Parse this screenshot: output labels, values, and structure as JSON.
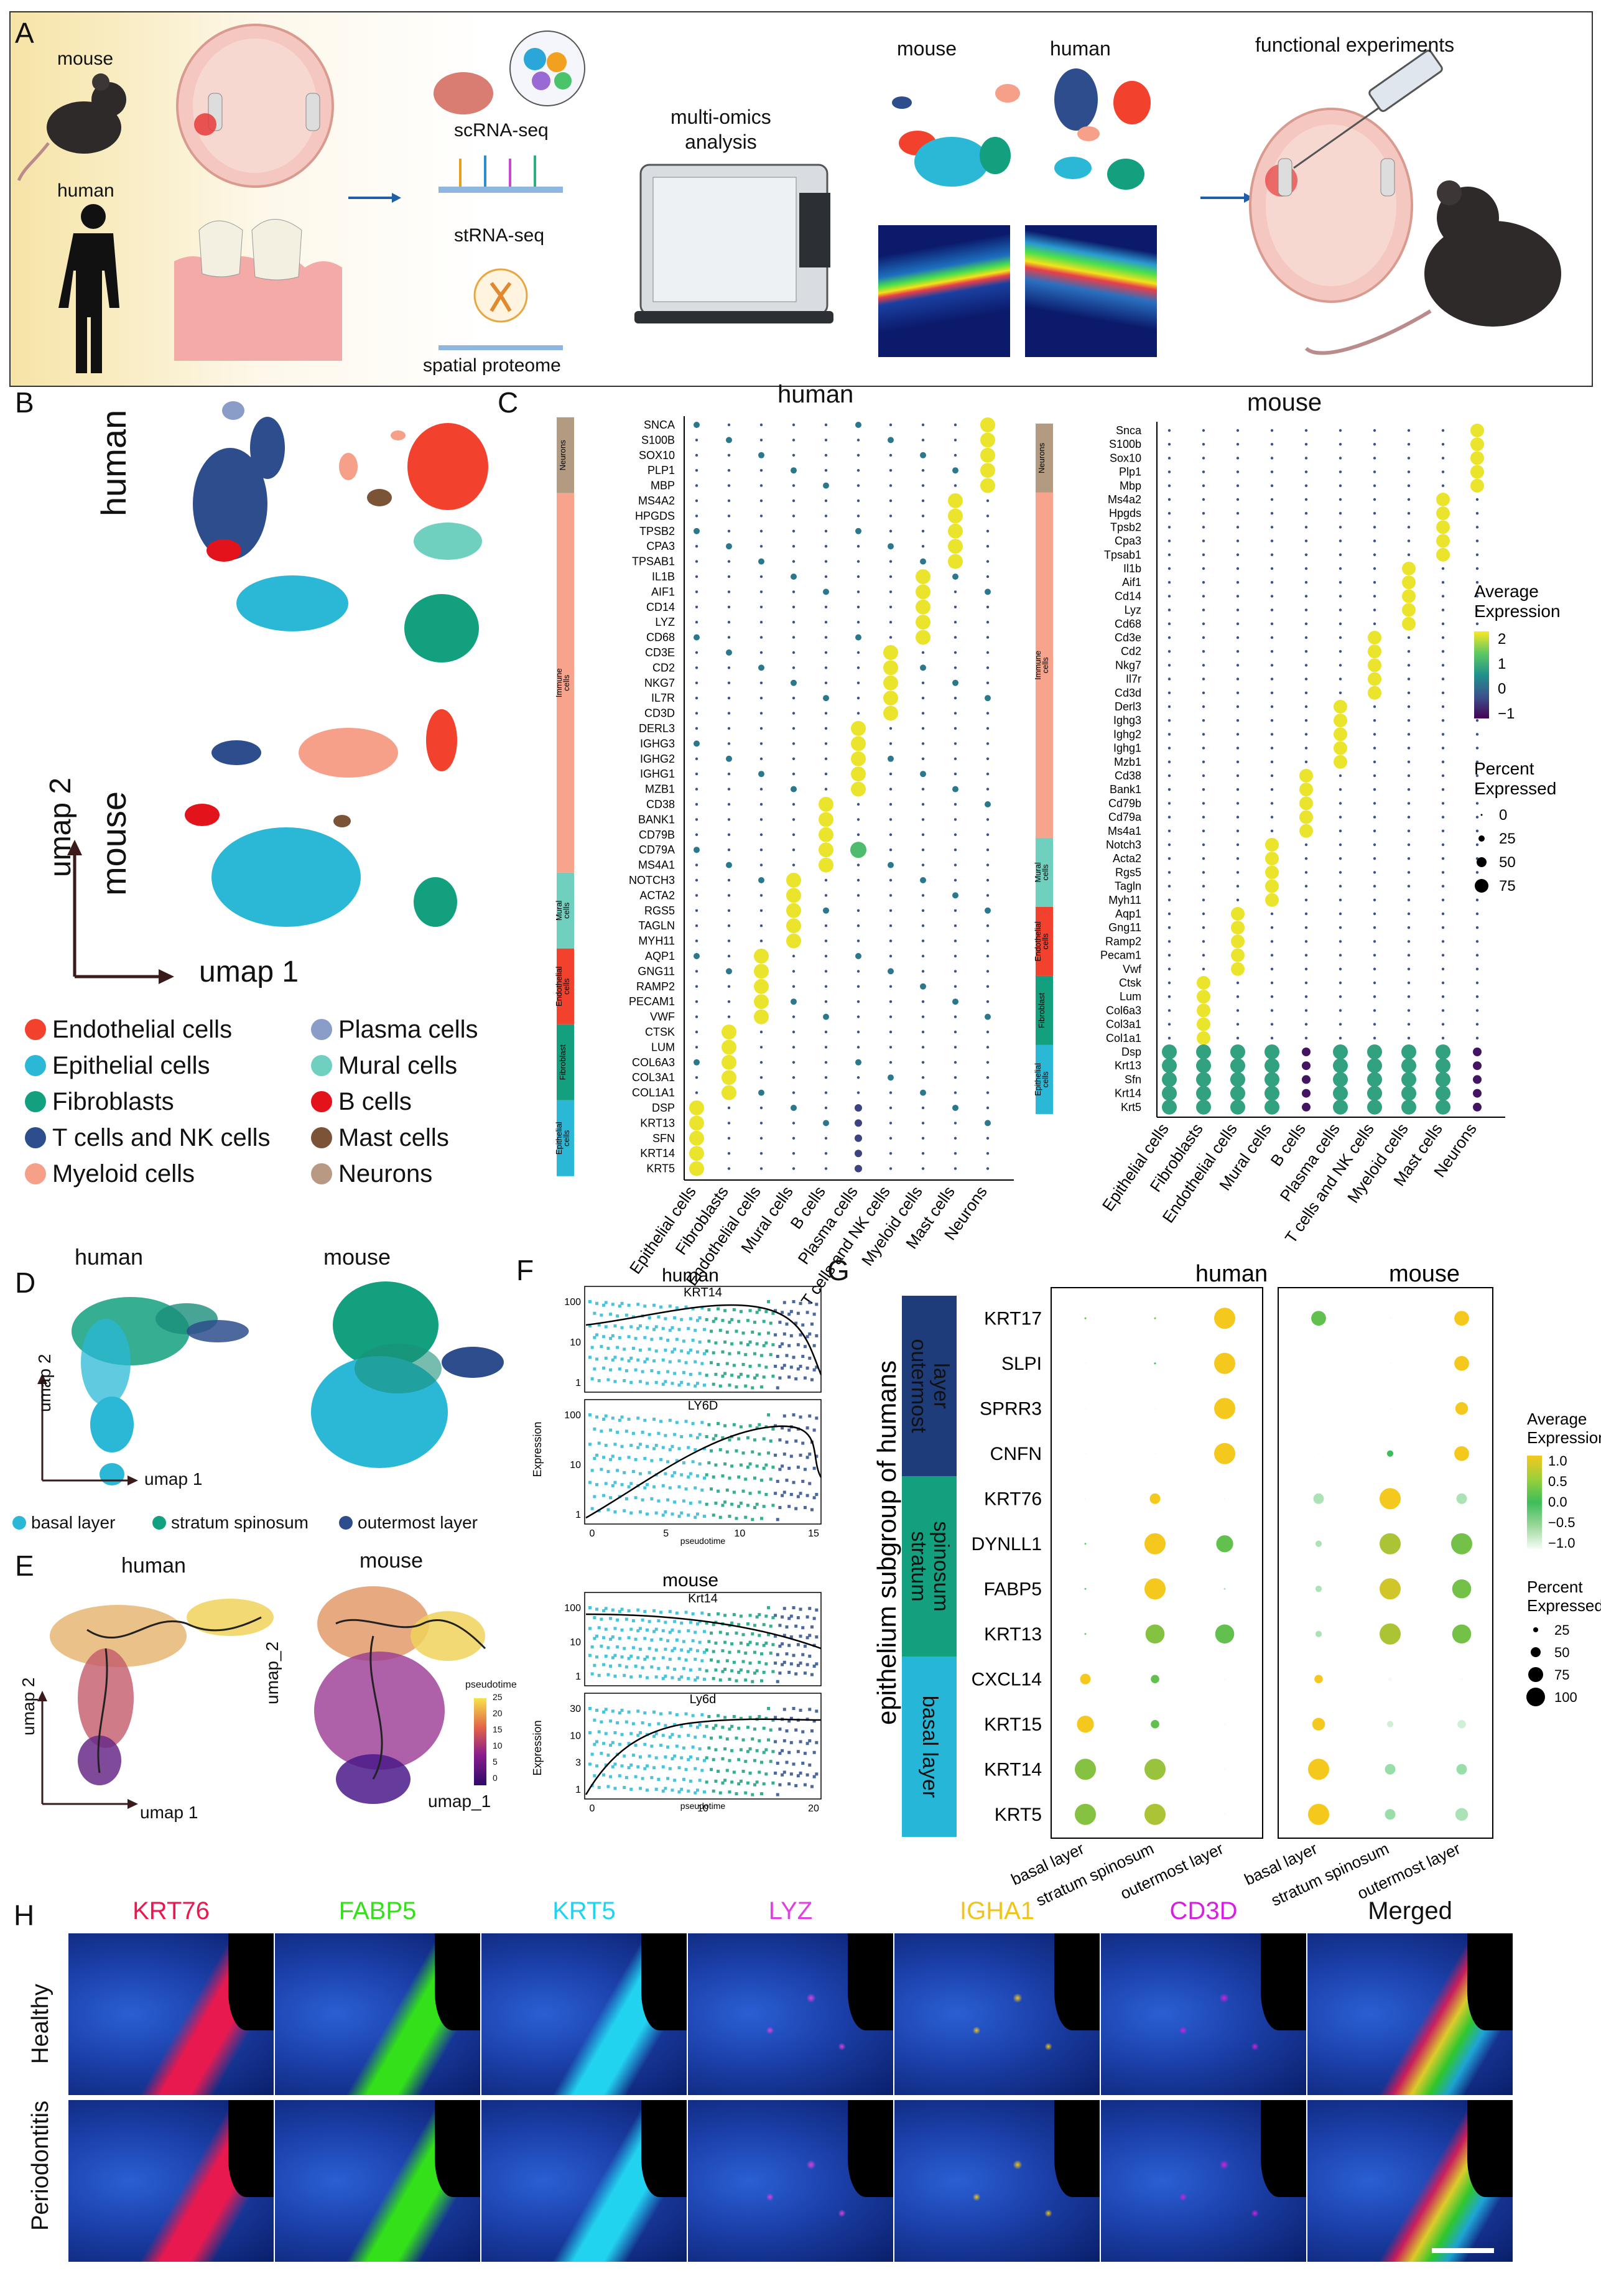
{
  "panels": {
    "a": "A",
    "b": "B",
    "c": "C",
    "d": "D",
    "e": "E",
    "f": "F",
    "g": "G",
    "h": "H"
  },
  "workflow": {
    "mouse": "mouse",
    "human": "human",
    "scrna": "scRNA-seq",
    "strna": "stRNA-seq",
    "spatial": "spatial proteome",
    "multiomics": "multi-omics\nanalysis",
    "mouse2": "mouse",
    "human2": "human",
    "functional": "functional experiments"
  },
  "umap": {
    "human": "human",
    "mouse": "mouse",
    "umap1": "umap 1",
    "umap2": "umap 2",
    "legend": [
      {
        "label": "Endothelial cells",
        "color": "#f2422d"
      },
      {
        "label": "Plasma cells",
        "color": "#8a9cc8"
      },
      {
        "label": "Epithelial cells",
        "color": "#2ab8d6"
      },
      {
        "label": "Mural cells",
        "color": "#6fd0c0"
      },
      {
        "label": "Fibroblasts",
        "color": "#13a07f"
      },
      {
        "label": "B cells",
        "color": "#e3131b"
      },
      {
        "label": "T cells and NK cells",
        "color": "#2e4d8c"
      },
      {
        "label": "Mast cells",
        "color": "#7b5437"
      },
      {
        "label": "Myeloid cells",
        "color": "#f6a08a"
      },
      {
        "label": "Neurons",
        "color": "#b89a84"
      }
    ]
  },
  "dotplot": {
    "human_title": "human",
    "mouse_title": "mouse",
    "human_genes": [
      "SNCA",
      "S100B",
      "SOX10",
      "PLP1",
      "MBP",
      "MS4A2",
      "HPGDS",
      "TPSB2",
      "CPA3",
      "TPSAB1",
      "IL1B",
      "AIF1",
      "CD14",
      "LYZ",
      "CD68",
      "CD3E",
      "CD2",
      "NKG7",
      "IL7R",
      "CD3D",
      "DERL3",
      "IGHG3",
      "IGHG2",
      "IGHG1",
      "MZB1",
      "CD38",
      "BANK1",
      "CD79B",
      "CD79A",
      "MS4A1",
      "NOTCH3",
      "ACTA2",
      "RGS5",
      "TAGLN",
      "MYH11",
      "AQP1",
      "GNG11",
      "RAMP2",
      "PECAM1",
      "VWF",
      "CTSK",
      "LUM",
      "COL6A3",
      "COL3A1",
      "COL1A1",
      "DSP",
      "KRT13",
      "SFN",
      "KRT14",
      "KRT5"
    ],
    "mouse_genes": [
      "Snca",
      "S100b",
      "Sox10",
      "Plp1",
      "Mbp",
      "Ms4a2",
      "Hpgds",
      "Tpsb2",
      "Cpa3",
      "Tpsab1",
      "Il1b",
      "Aif1",
      "Cd14",
      "Lyz",
      "Cd68",
      "Cd3e",
      "Cd2",
      "Nkg7",
      "Il7r",
      "Cd3d",
      "Derl3",
      "Ighg3",
      "Ighg2",
      "Ighg1",
      "Mzb1",
      "Cd38",
      "Bank1",
      "Cd79b",
      "Cd79a",
      "Ms4a1",
      "Notch3",
      "Acta2",
      "Rgs5",
      "Tagln",
      "Myh11",
      "Aqp1",
      "Gng11",
      "Ramp2",
      "Pecam1",
      "Vwf",
      "Ctsk",
      "Lum",
      "Col6a3",
      "Col3a1",
      "Col1a1",
      "Dsp",
      "Krt13",
      "Sfn",
      "Krt14",
      "Krt5"
    ],
    "cell_types": [
      "Epithelial cells",
      "Fibroblasts",
      "Endothelial cells",
      "Mural cells",
      "B cells",
      "Plasma cells",
      "T cells and NK cells",
      "Myeloid cells",
      "Mast cells",
      "Neurons"
    ],
    "groups": [
      {
        "label": "Neurons",
        "color": "#b39b82"
      },
      {
        "label": "Immune\ncells",
        "color": "#f8a48c"
      },
      {
        "label": "Mural\ncells",
        "color": "#6fd0c0"
      },
      {
        "label": "Endothelial\ncells",
        "color": "#f2422d"
      },
      {
        "label": "Fibroblast",
        "color": "#13a07f"
      },
      {
        "label": "Epithelial\ncells",
        "color": "#2ab8d6"
      }
    ],
    "avg_title": "Average\nExpression",
    "avg_ticks": [
      "2",
      "1",
      "0",
      "−1"
    ],
    "pct_title": "Percent\nExpressed",
    "pct_ticks": [
      "0",
      "25",
      "50",
      "75"
    ]
  },
  "traj": {
    "human": "human",
    "mouse": "mouse",
    "umap1": "umap 1",
    "umap2": "umap 2",
    "umap1b": "umap_1",
    "umap2b": "umap_2",
    "legend": [
      {
        "label": "basal layer",
        "color": "#2ab8d6"
      },
      {
        "label": "stratum spinosum",
        "color": "#13a07f"
      },
      {
        "label": "outermost layer",
        "color": "#2e4d8c"
      }
    ],
    "pseudotime": "pseudotime",
    "pt_ticks": [
      "25",
      "20",
      "15",
      "10",
      "5",
      "0"
    ]
  },
  "expr": {
    "human": "human",
    "mouse": "mouse",
    "krt14h": "KRT14",
    "ly6dh": "LY6D",
    "krt14m": "Krt14",
    "ly6dm": "Ly6d",
    "ylabel": "Expression",
    "xlabel": "pseudotime",
    "h_xticks": [
      "0",
      "5",
      "10",
      "15"
    ],
    "m_xticks": [
      "0",
      "10",
      "20"
    ],
    "h_yticks_top": [
      "100",
      "10",
      "1"
    ],
    "h_yticks_bot": [
      "100",
      "10",
      "1"
    ],
    "m_yticks_top": [
      "100",
      "10",
      "1"
    ],
    "m_yticks_bot": [
      "30",
      "10",
      "3",
      "1"
    ]
  },
  "epi": {
    "human": "human",
    "mouse": "mouse",
    "side_label": "epithelium subgroup of humans",
    "groups": [
      {
        "label": "outermost\nlayer",
        "color": "#1f3c7a"
      },
      {
        "label": "stratum\nspinosum",
        "color": "#13a07f"
      },
      {
        "label": "basal layer",
        "color": "#25b6d8"
      }
    ],
    "genes": [
      "KRT17",
      "SLPI",
      "SPRR3",
      "CNFN",
      "KRT76",
      "DYNLL1",
      "FABP5",
      "KRT13",
      "CXCL14",
      "KRT15",
      "KRT14",
      "KRT5"
    ],
    "layers": [
      "basal layer",
      "stratum spinosum",
      "outermost layer"
    ],
    "avg_title": "Average\nExpression",
    "avg_ticks": [
      "1.0",
      "0.5",
      "0.0",
      "−0.5",
      "−1.0"
    ],
    "pct_title": "Percent\nExpressed",
    "pct_ticks": [
      "25",
      "50",
      "75",
      "100"
    ]
  },
  "micro": {
    "markers": [
      {
        "label": "KRT76",
        "color": "#e8194f"
      },
      {
        "label": "FABP5",
        "color": "#33e01a"
      },
      {
        "label": "KRT5",
        "color": "#22d3f0"
      },
      {
        "label": "LYZ",
        "color": "#e040e0"
      },
      {
        "label": "IGHA1",
        "color": "#f0c419"
      },
      {
        "label": "CD3D",
        "color": "#d61fe0"
      },
      {
        "label": "Merged",
        "color": "#111111"
      }
    ],
    "rows": [
      "Healthy",
      "Periodontitis"
    ]
  }
}
